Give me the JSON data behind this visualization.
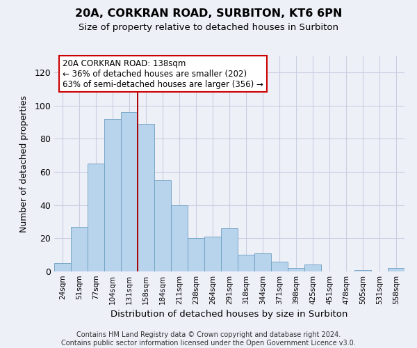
{
  "title": "20A, CORKRAN ROAD, SURBITON, KT6 6PN",
  "subtitle": "Size of property relative to detached houses in Surbiton",
  "xlabel": "Distribution of detached houses by size in Surbiton",
  "ylabel": "Number of detached properties",
  "bar_labels": [
    "24sqm",
    "51sqm",
    "77sqm",
    "104sqm",
    "131sqm",
    "158sqm",
    "184sqm",
    "211sqm",
    "238sqm",
    "264sqm",
    "291sqm",
    "318sqm",
    "344sqm",
    "371sqm",
    "398sqm",
    "425sqm",
    "451sqm",
    "478sqm",
    "505sqm",
    "531sqm",
    "558sqm"
  ],
  "bar_values": [
    5,
    27,
    65,
    92,
    96,
    89,
    55,
    40,
    20,
    21,
    26,
    10,
    11,
    6,
    2,
    4,
    0,
    0,
    1,
    0,
    2
  ],
  "bar_color": "#b8d4ec",
  "bar_edgecolor": "#6a9ec0",
  "vline_x": 4.5,
  "vline_color": "#aa0000",
  "ylim": [
    0,
    130
  ],
  "yticks": [
    0,
    20,
    40,
    60,
    80,
    100,
    120
  ],
  "annotation_title": "20A CORKRAN ROAD: 138sqm",
  "annotation_line1": "← 36% of detached houses are smaller (202)",
  "annotation_line2": "63% of semi-detached houses are larger (356) →",
  "annotation_box_edgecolor": "#cc0000",
  "footer_line1": "Contains HM Land Registry data © Crown copyright and database right 2024.",
  "footer_line2": "Contains public sector information licensed under the Open Government Licence v3.0.",
  "background_color": "#eef0f8",
  "plot_background": "#eef0f8",
  "grid_color": "#c8cfe0"
}
